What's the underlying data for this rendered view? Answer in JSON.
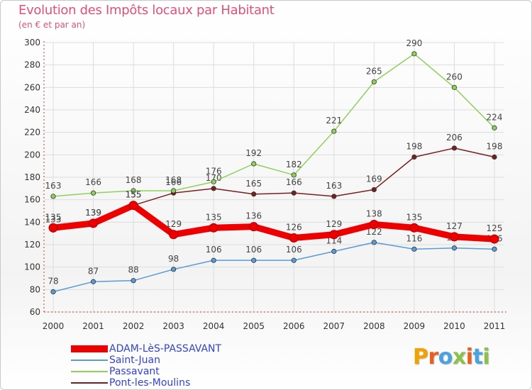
{
  "title": "Evolution des Impôts locaux par Habitant",
  "subtitle": "(en € et par an)",
  "brand": "Proxiti",
  "brand_colors": [
    "#f2a100",
    "#e8601c",
    "#4aa3df",
    "#8bc34a",
    "#e8601c",
    "#4aa3df",
    "#8bc34a"
  ],
  "chart_data": {
    "type": "line",
    "x": [
      "2000",
      "2001",
      "2002",
      "2003",
      "2004",
      "2005",
      "2006",
      "2007",
      "2008",
      "2009",
      "2010",
      "2011"
    ],
    "yticks": [
      60,
      80,
      100,
      120,
      140,
      160,
      180,
      200,
      220,
      240,
      260,
      280,
      300
    ],
    "ylim": [
      60,
      300
    ],
    "grid": true,
    "legend_position": "bottom-left",
    "series": [
      {
        "name": "ADAM-LèS-PASSAVANT",
        "color": "#ee0000",
        "values": [
          135,
          139,
          155,
          129,
          135,
          136,
          126,
          129,
          138,
          135,
          127,
          125
        ],
        "labels": [
          "135",
          "139",
          "155",
          "129",
          "135",
          "136",
          "126",
          "129",
          "138",
          "135",
          "127",
          "125"
        ],
        "bold": true
      },
      {
        "name": "Saint-Juan",
        "color": "#5b9bd5",
        "values": [
          78,
          87,
          88,
          98,
          106,
          106,
          106,
          114,
          122,
          116,
          117,
          116
        ],
        "labels": [
          "78",
          "87",
          "88",
          "98",
          "106",
          "106",
          "106",
          "114",
          "122",
          "116",
          "117",
          "116"
        ]
      },
      {
        "name": "Passavant",
        "color": "#8ed05a",
        "values": [
          163,
          166,
          168,
          168,
          176,
          192,
          182,
          221,
          265,
          290,
          260,
          224
        ],
        "labels": [
          "163",
          "166",
          "168",
          "168",
          "176",
          "192",
          "182",
          "221",
          "265",
          "290",
          "260",
          "224"
        ]
      },
      {
        "name": "Pont-les-Moulins",
        "color": "#7a1f1f",
        "values": [
          133,
          139,
          155,
          166,
          170,
          165,
          166,
          163,
          169,
          198,
          206,
          198
        ],
        "labels": [
          "133",
          "139",
          "155",
          "166",
          "170",
          "165",
          "166",
          "163",
          "169",
          "198",
          "206",
          "198"
        ]
      }
    ]
  }
}
